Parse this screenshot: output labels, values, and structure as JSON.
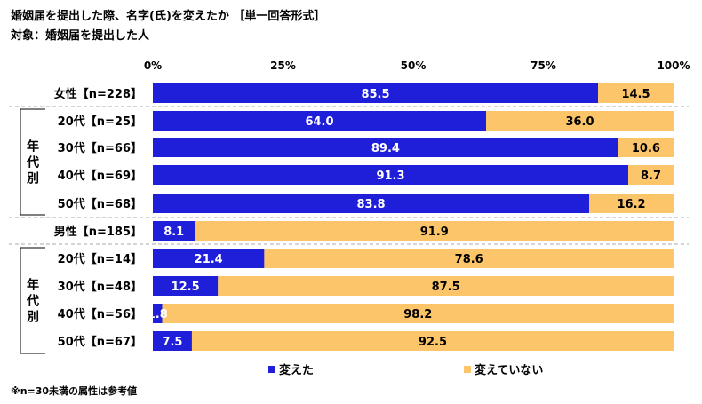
{
  "title": "婚姻届を提出した際、名字(氏)を変えたか ［単一回答形式］",
  "subtitle": "対象：婚姻届を提出した人",
  "footnote": "※n=30未満の属性は参考値",
  "group_label": "年代別",
  "colors": {
    "changed": "#1f1fd9",
    "not_changed": "#fcc56a",
    "divider": "#aaaaaa"
  },
  "chart_data": {
    "type": "bar",
    "orientation": "horizontal",
    "stacked": true,
    "xlim": [
      0,
      100
    ],
    "tick_labels": [
      "0%",
      "25%",
      "50%",
      "75%",
      "100%"
    ],
    "categories": [
      "女性【n=228】",
      "20代【n=25】",
      "30代【n=66】",
      "40代【n=69】",
      "50代【n=68】",
      "男性【n=185】",
      "20代【n=14】",
      "30代【n=48】",
      "40代【n=56】",
      "50代【n=67】"
    ],
    "series": [
      {
        "name": "変えた",
        "values": [
          85.5,
          64.0,
          89.4,
          91.3,
          83.8,
          8.1,
          21.4,
          12.5,
          1.8,
          7.5
        ],
        "labels": [
          "85.5",
          "64.0",
          "89.4",
          "91.3",
          "83.8",
          "8.1",
          "21.4",
          "12.5",
          "1.8",
          "7.5"
        ]
      },
      {
        "name": "変えていない",
        "values": [
          14.5,
          36.0,
          10.6,
          8.7,
          16.2,
          91.9,
          78.6,
          87.5,
          98.2,
          92.5
        ],
        "labels": [
          "14.5",
          "36.0",
          "10.6",
          "8.7",
          "16.2",
          "91.9",
          "78.6",
          "87.5",
          "98.2",
          "92.5"
        ]
      }
    ]
  }
}
